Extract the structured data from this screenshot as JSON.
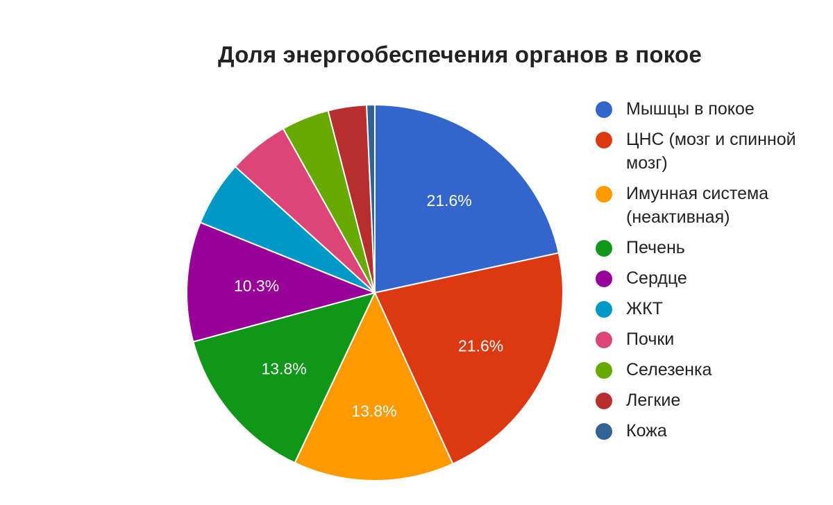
{
  "chart_data": {
    "type": "pie",
    "title": "Доля энергообеспечения органов в покое",
    "legend_position": "right",
    "slices": [
      {
        "name": "Мышцы в покое",
        "value": 21.6,
        "label": "21.6%",
        "color": "#3366cc"
      },
      {
        "name": "ЦНС (мозг и спинной мозг)",
        "value": 21.6,
        "label": "21.6%",
        "color": "#dc3912"
      },
      {
        "name": "Имунная система (неактивная)",
        "value": 13.8,
        "label": "13.8%",
        "color": "#ff9900"
      },
      {
        "name": "Печень",
        "value": 13.8,
        "label": "13.8%",
        "color": "#109618"
      },
      {
        "name": "Сердце",
        "value": 10.3,
        "label": "10.3%",
        "color": "#990099"
      },
      {
        "name": "ЖКТ",
        "value": 5.6,
        "label": "",
        "color": "#0099c6"
      },
      {
        "name": "Почки",
        "value": 5.2,
        "label": "",
        "color": "#dd4477"
      },
      {
        "name": "Селезенка",
        "value": 4.1,
        "label": "",
        "color": "#66aa00"
      },
      {
        "name": "Легкие",
        "value": 3.3,
        "label": "",
        "color": "#b82e2e"
      },
      {
        "name": "Кожа",
        "value": 0.7,
        "label": "",
        "color": "#316395"
      }
    ]
  }
}
